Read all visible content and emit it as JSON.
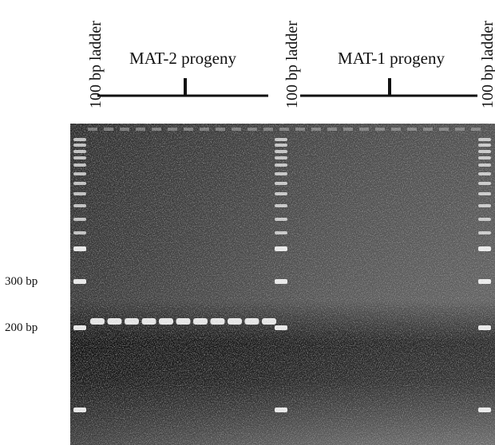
{
  "lane_labels": [
    "100 bp ladder",
    "100 bp ladder",
    "100 bp ladder"
  ],
  "group_labels": [
    "MAT-2 progeny",
    "MAT-1 progeny"
  ],
  "size_markers": [
    "300 bp",
    "200 bp"
  ]
}
